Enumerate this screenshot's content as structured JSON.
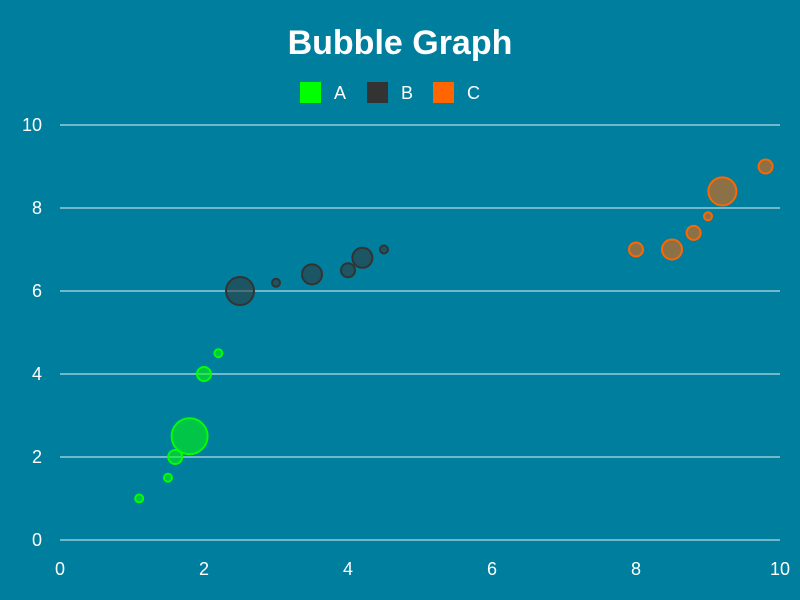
{
  "chart_data": {
    "type": "scatter",
    "title": "Bubble Graph",
    "xlabel": "",
    "ylabel": "",
    "xlim": [
      0,
      10
    ],
    "ylim": [
      0,
      10
    ],
    "x_ticks": [
      "0",
      "2",
      "4",
      "6",
      "8",
      "10"
    ],
    "y_ticks": [
      "0",
      "2",
      "4",
      "6",
      "8",
      "10"
    ],
    "grid": "horizontal",
    "legend_position": "top-center",
    "background": "#007e9e",
    "series": [
      {
        "name": "A",
        "color": "#00ff00",
        "points": [
          {
            "x": 1.1,
            "y": 1.0,
            "r": 4
          },
          {
            "x": 1.5,
            "y": 1.5,
            "r": 4
          },
          {
            "x": 1.6,
            "y": 2.0,
            "r": 7
          },
          {
            "x": 1.8,
            "y": 2.5,
            "r": 18
          },
          {
            "x": 2.0,
            "y": 4.0,
            "r": 7
          },
          {
            "x": 2.2,
            "y": 4.5,
            "r": 4
          }
        ]
      },
      {
        "name": "B",
        "color": "#333333",
        "points": [
          {
            "x": 2.5,
            "y": 6.0,
            "r": 14
          },
          {
            "x": 3.0,
            "y": 6.2,
            "r": 4
          },
          {
            "x": 3.5,
            "y": 6.4,
            "r": 10
          },
          {
            "x": 4.0,
            "y": 6.5,
            "r": 7
          },
          {
            "x": 4.2,
            "y": 6.8,
            "r": 10
          },
          {
            "x": 4.5,
            "y": 7.0,
            "r": 4
          }
        ]
      },
      {
        "name": "C",
        "color": "#ff6600",
        "points": [
          {
            "x": 8.0,
            "y": 7.0,
            "r": 7
          },
          {
            "x": 8.5,
            "y": 7.0,
            "r": 10
          },
          {
            "x": 8.8,
            "y": 7.4,
            "r": 7
          },
          {
            "x": 9.0,
            "y": 7.8,
            "r": 4
          },
          {
            "x": 9.2,
            "y": 8.4,
            "r": 14
          },
          {
            "x": 9.8,
            "y": 9.0,
            "r": 7
          }
        ]
      }
    ]
  }
}
